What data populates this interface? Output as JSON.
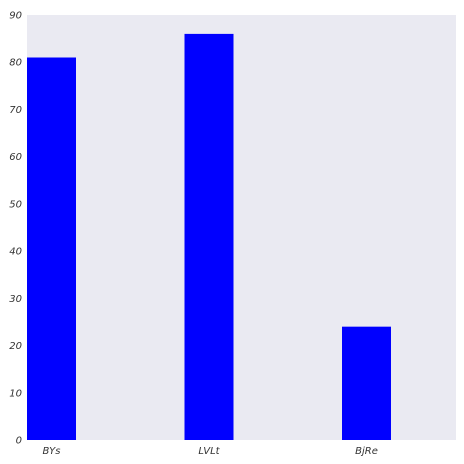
{
  "chart_data": {
    "type": "bar",
    "categories": [
      "BYs",
      "LVLt",
      "BjRe"
    ],
    "values": [
      81,
      86,
      24
    ],
    "ylim": [
      0,
      90
    ],
    "yticks": [
      "0",
      "10",
      "20",
      "30",
      "40",
      "50",
      "60",
      "70",
      "80",
      "90"
    ],
    "grid": false,
    "title": "",
    "xlabel": "",
    "ylabel": "",
    "colors": {
      "bar": "#0000ff",
      "plot_background": "#eaeaf2",
      "tick_text": "#333333"
    }
  }
}
